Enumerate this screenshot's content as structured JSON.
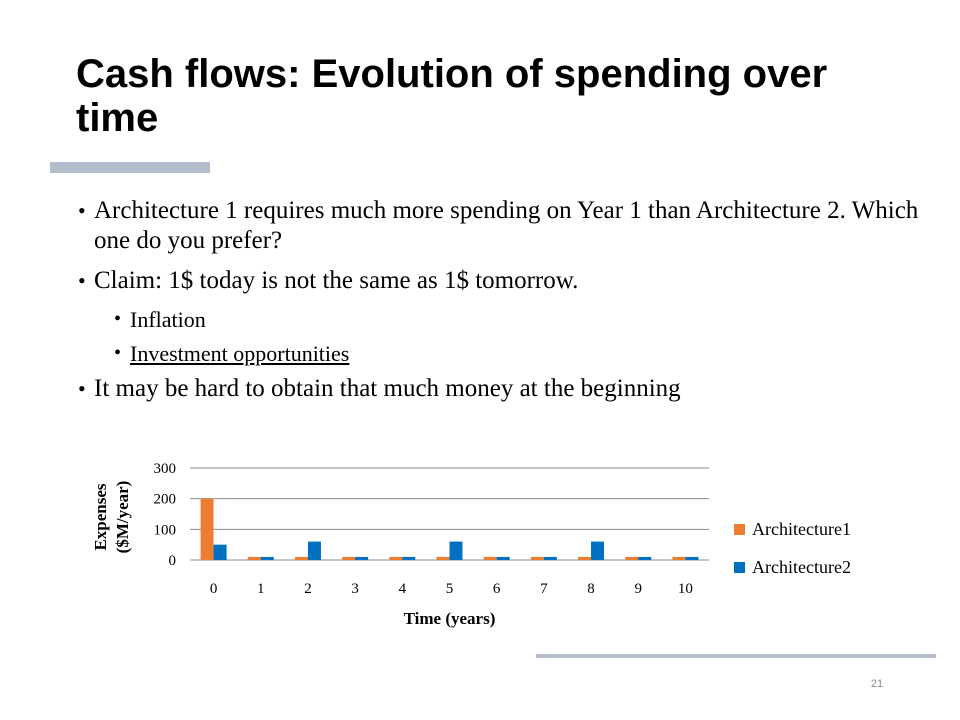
{
  "slide": {
    "title": "Cash flows: Evolution of spending over time",
    "page_number": "21"
  },
  "bullets": [
    "Architecture 1 requires much more spending on Year 1 than Architecture 2. Which one do you prefer?",
    "Claim: 1$ today is not the same as 1$ tomorrow.",
    "Inflation",
    "Investment opportunities",
    "It may be hard to obtain that much money at the beginning"
  ],
  "colors": {
    "architecture1": "#ed7d31",
    "architecture2": "#0070c0",
    "accent_bar": "#b3bdcb",
    "gridline": "#8c8c8c"
  },
  "chart_data": {
    "type": "bar",
    "title": "",
    "xlabel": "Time (years)",
    "ylabel": "Expenses ($M/year)",
    "ylabel_lines": [
      "Expenses",
      "($M/year)"
    ],
    "categories": [
      "0",
      "1",
      "2",
      "3",
      "4",
      "5",
      "6",
      "7",
      "8",
      "9",
      "10"
    ],
    "series": [
      {
        "name": "Architecture1",
        "values": [
          200,
          10,
          10,
          10,
          10,
          10,
          10,
          10,
          10,
          10,
          10
        ]
      },
      {
        "name": "Architecture2",
        "values": [
          50,
          10,
          60,
          10,
          10,
          60,
          10,
          10,
          60,
          10,
          10
        ]
      }
    ],
    "ylim": [
      0,
      300
    ],
    "yticks": [
      0,
      100,
      200,
      300
    ],
    "grid": true,
    "legend": "right"
  }
}
